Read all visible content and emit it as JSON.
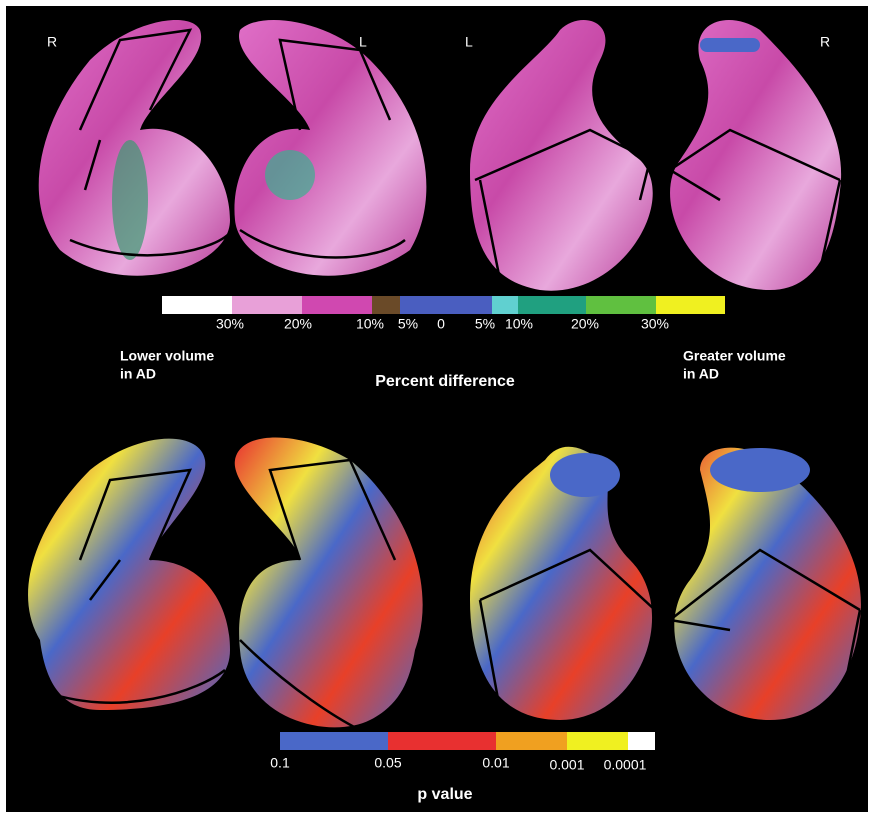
{
  "figure": {
    "top_panel": {
      "side_labels": [
        "R",
        "L",
        "L",
        "R"
      ],
      "colorbar_ticks": [
        "30%",
        "20%",
        "10%",
        "5%",
        "0",
        "5%",
        "10%",
        "20%",
        "30%"
      ],
      "left_caption": [
        "Lower volume",
        "in AD"
      ],
      "right_caption": [
        "Greater volume",
        "in AD"
      ],
      "axis_title": "Percent difference"
    },
    "bottom_panel": {
      "colorbar_ticks": [
        "0.1",
        "0.05",
        "0.01",
        "0.001",
        "0.0001"
      ],
      "axis_title": "p value"
    }
  }
}
